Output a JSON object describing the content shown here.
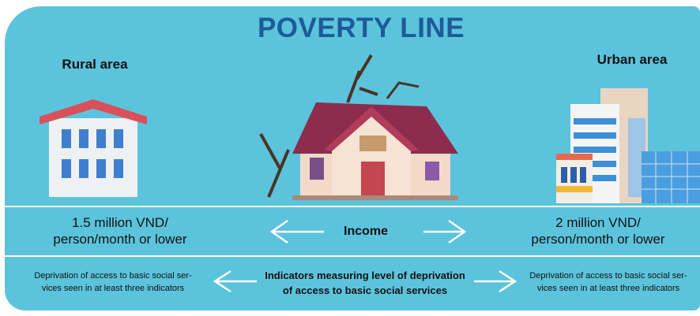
{
  "title": "POVERTY LINE",
  "rural": {
    "label": "Rural area"
  },
  "urban": {
    "label": "Urban area"
  },
  "income": {
    "label": "Income",
    "rural": [
      "1.5 million VND/",
      "person/month or lower"
    ],
    "urban": [
      "2 million VND/",
      "person/month or lower"
    ]
  },
  "deprivation": {
    "label": [
      "Indicators measuring level of deprivation",
      "of access to basic social services"
    ],
    "rural": [
      "Deprivation of access to basic social ser-",
      "vices seen in at least three indicators"
    ],
    "urban": [
      "Deprivation of access to basic social ser-",
      "vices seen in at least three indicators"
    ]
  }
}
